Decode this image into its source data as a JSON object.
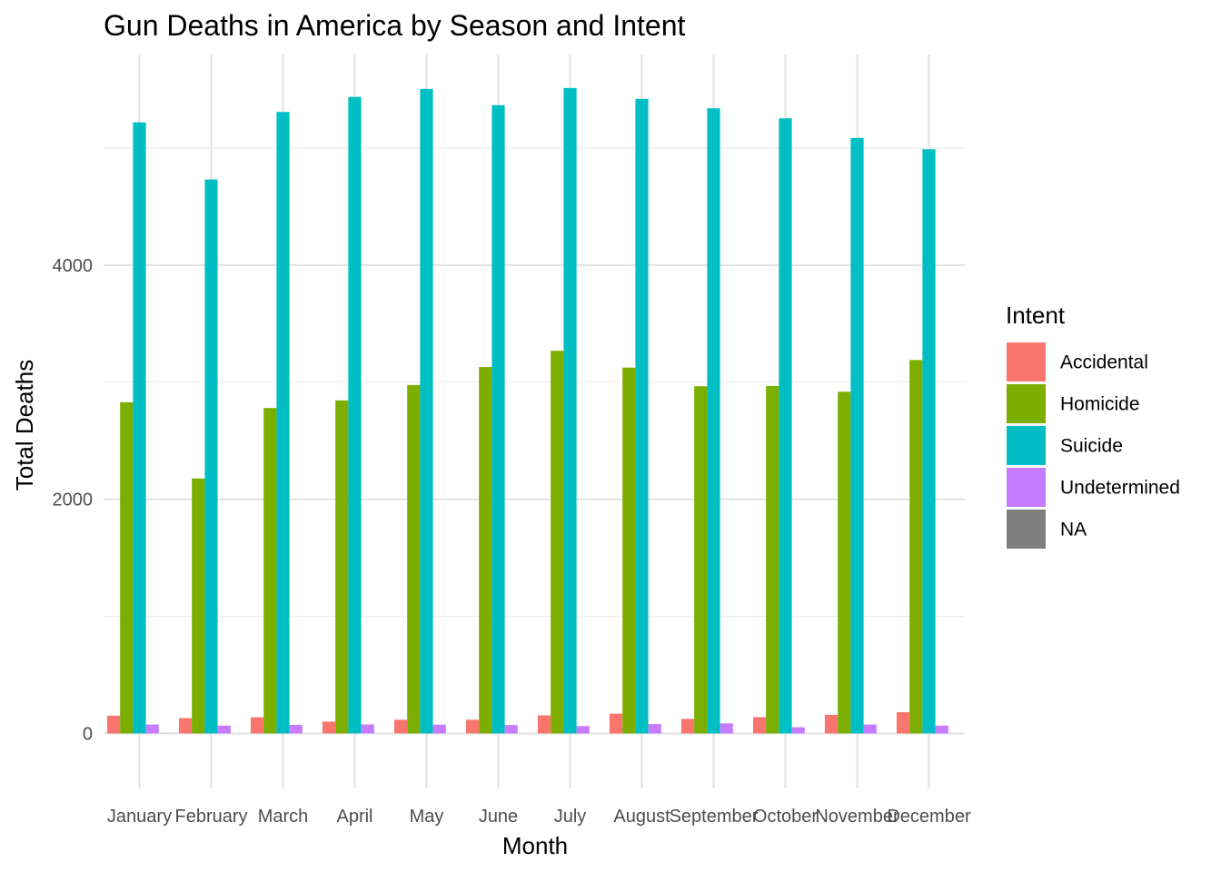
{
  "chart_data": {
    "type": "bar",
    "title": "Gun Deaths in America by Season and Intent",
    "xlabel": "Month",
    "ylabel": "Total Deaths",
    "categories": [
      "January",
      "February",
      "March",
      "April",
      "May",
      "June",
      "July",
      "August",
      "September",
      "October",
      "November",
      "December"
    ],
    "series": [
      {
        "name": "Accidental",
        "color": "#F8766D",
        "values": [
          152,
          131,
          138,
          101,
          117,
          117,
          154,
          169,
          124,
          139,
          159,
          181
        ]
      },
      {
        "name": "Homicide",
        "color": "#7CAE00",
        "values": [
          2829,
          2178,
          2780,
          2845,
          2976,
          3130,
          3269,
          3125,
          2966,
          2968,
          2919,
          3190
        ]
      },
      {
        "name": "Suicide",
        "color": "#00BFC4",
        "values": [
          5220,
          4732,
          5309,
          5438,
          5506,
          5367,
          5514,
          5421,
          5340,
          5255,
          5087,
          4991
        ]
      },
      {
        "name": "Undetermined",
        "color": "#C77CFF",
        "values": [
          76,
          67,
          73,
          77,
          75,
          72,
          63,
          80,
          86,
          53,
          76,
          67
        ]
      },
      {
        "name": "NA",
        "color": "#7F7F7F",
        "values": [
          1,
          0,
          0,
          0,
          0,
          0,
          0,
          0,
          0,
          0,
          0,
          0
        ]
      }
    ],
    "y_ticks": [
      0,
      2000,
      4000
    ],
    "ylim": [
      -470,
      5800
    ],
    "grid": true,
    "legend_title": "Intent",
    "legend_position": "right"
  }
}
